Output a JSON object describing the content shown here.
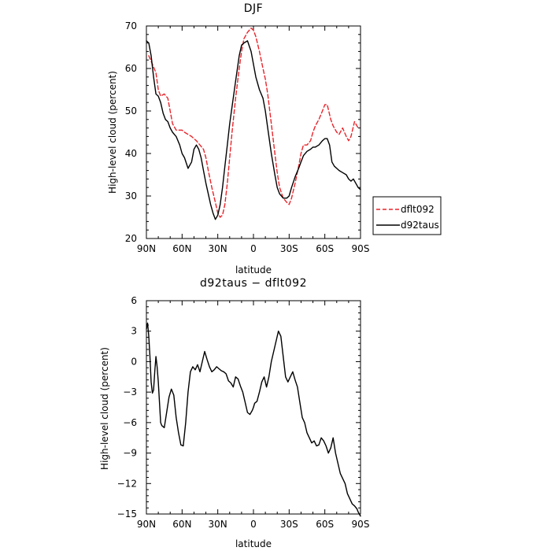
{
  "chart_data": [
    {
      "type": "line",
      "title": "DJF",
      "xlabel": "latitude",
      "ylabel": "High-level cloud (percent)",
      "xlim": [
        90,
        -90
      ],
      "ylim": [
        20,
        70
      ],
      "xticks": [
        90,
        60,
        30,
        0,
        -30,
        -60,
        -90
      ],
      "xtick_labels": [
        "90N",
        "60N",
        "30N",
        "0",
        "30S",
        "60S",
        "90S"
      ],
      "yticks": [
        20,
        30,
        40,
        50,
        60,
        70
      ],
      "ytick_labels": [
        "20",
        "30",
        "40",
        "50",
        "60",
        "70"
      ],
      "legend": {
        "placement": "right",
        "entries": [
          "dflt092",
          "d92taus"
        ]
      },
      "series": [
        {
          "name": "dflt092",
          "color": "#e8242a",
          "dash": "dashed",
          "x": [
            88,
            85,
            82,
            80,
            78,
            75,
            72,
            70,
            68,
            65,
            62,
            60,
            58,
            55,
            52,
            50,
            48,
            45,
            42,
            40,
            38,
            35,
            32,
            30,
            28,
            26,
            24,
            22,
            20,
            18,
            15,
            12,
            10,
            8,
            5,
            2,
            0,
            -2,
            -5,
            -8,
            -10,
            -12,
            -15,
            -18,
            -20,
            -22,
            -25,
            -28,
            -30,
            -32,
            -35,
            -38,
            -40,
            -42,
            -45,
            -48,
            -50,
            -52,
            -55,
            -58,
            -60,
            -62,
            -65,
            -67,
            -70,
            -72,
            -75,
            -78,
            -80,
            -82,
            -85,
            -88
          ],
          "values": [
            63,
            61,
            59,
            55,
            53.5,
            54,
            53,
            50,
            47,
            45.5,
            45.5,
            45.5,
            45,
            44.5,
            44,
            43.5,
            43,
            42,
            41,
            39,
            36,
            32,
            28.5,
            26,
            25,
            25.5,
            28,
            33,
            39,
            45,
            53,
            60,
            64,
            67,
            68.5,
            69.5,
            69,
            67.5,
            64,
            60,
            57.5,
            54,
            47,
            40,
            35.5,
            32,
            29.5,
            28.5,
            28,
            29.5,
            33,
            37,
            40,
            42,
            42,
            43,
            45,
            46.5,
            48,
            50,
            51.5,
            51.5,
            48,
            46.5,
            45,
            44.5,
            46,
            44,
            43,
            44,
            47.5,
            46
          ]
        },
        {
          "name": "d92taus",
          "color": "#000000",
          "dash": "solid",
          "x": [
            90,
            88,
            86,
            84,
            82,
            80,
            78,
            76,
            74,
            72,
            70,
            68,
            65,
            62,
            60,
            58,
            55,
            52,
            50,
            48,
            46,
            44,
            42,
            40,
            38,
            36,
            34,
            32,
            30,
            28,
            26,
            24,
            22,
            20,
            18,
            15,
            12,
            10,
            8,
            5,
            2,
            0,
            -2,
            -5,
            -8,
            -10,
            -12,
            -15,
            -18,
            -20,
            -22,
            -25,
            -28,
            -30,
            -32,
            -35,
            -38,
            -40,
            -42,
            -45,
            -48,
            -50,
            -52,
            -55,
            -58,
            -60,
            -62,
            -64,
            -66,
            -68,
            -70,
            -72,
            -75,
            -78,
            -80,
            -82,
            -84,
            -86,
            -88,
            -90
          ],
          "values": [
            66.5,
            66,
            63,
            58,
            54,
            53.5,
            52,
            49.5,
            48,
            47.5,
            46,
            45,
            44,
            42,
            40,
            39,
            36.5,
            38,
            41,
            42,
            41,
            39,
            36,
            33,
            30.5,
            28,
            26,
            24.5,
            25.5,
            28,
            32,
            37,
            42,
            47,
            51,
            57,
            63,
            65.5,
            66,
            66.5,
            64,
            61,
            58,
            55,
            53,
            50,
            46,
            40,
            35,
            32,
            30.5,
            29.5,
            29.5,
            30,
            32,
            34.5,
            36.5,
            38,
            39.5,
            40.5,
            41,
            41.5,
            41.5,
            42,
            43,
            43.5,
            43.5,
            42,
            38,
            37,
            36.5,
            36,
            35.5,
            35,
            34,
            33.5,
            34,
            33,
            32,
            31.5
          ]
        }
      ]
    },
    {
      "type": "line",
      "title": "d92taus − dflt092",
      "xlabel": "latitude",
      "ylabel": "High-level cloud (percent)",
      "xlim": [
        90,
        -90
      ],
      "ylim": [
        -15,
        6
      ],
      "xticks": [
        90,
        60,
        30,
        0,
        -30,
        -60,
        -90
      ],
      "xtick_labels": [
        "90N",
        "60N",
        "30N",
        "0",
        "30S",
        "60S",
        "90S"
      ],
      "yticks": [
        -15,
        -12,
        -9,
        -6,
        -3,
        0,
        3,
        6
      ],
      "ytick_labels": [
        "−15",
        "−12",
        "−9",
        "−6",
        "−3",
        "0",
        "3",
        "6"
      ],
      "series": [
        {
          "color": "#000000",
          "dash": "solid",
          "x": [
            90,
            89,
            88,
            87,
            86,
            85,
            84,
            83,
            82,
            81,
            80,
            79,
            78,
            77,
            75,
            73,
            71,
            69,
            67,
            65,
            63,
            61,
            59,
            57,
            55,
            53,
            51,
            49,
            47,
            45,
            43,
            41,
            39,
            37,
            35,
            33,
            31,
            29,
            27,
            25,
            23,
            21,
            19,
            17,
            15,
            13,
            11,
            9,
            7,
            5,
            3,
            1,
            0,
            -1,
            -3,
            -5,
            -7,
            -9,
            -11,
            -13,
            -15,
            -17,
            -19,
            -21,
            -23,
            -25,
            -27,
            -29,
            -31,
            -33,
            -35,
            -37,
            -39,
            -41,
            -43,
            -45,
            -47,
            -49,
            -51,
            -53,
            -55,
            -57,
            -59,
            -61,
            -63,
            -65,
            -67,
            -69,
            -71,
            -73,
            -75,
            -77,
            -79,
            -81,
            -83,
            -85,
            -87,
            -88,
            -89,
            -90
          ],
          "values": [
            3.2,
            3.8,
            2.5,
            0.5,
            -2,
            -3.1,
            -2.8,
            -1,
            0.5,
            -0.5,
            -2,
            -4,
            -6,
            -6.3,
            -6.5,
            -5,
            -3.5,
            -2.7,
            -3.3,
            -5.5,
            -7,
            -8.2,
            -8.3,
            -6,
            -3,
            -1,
            -0.5,
            -0.8,
            -0.3,
            -1,
            0,
            1,
            0.2,
            -0.5,
            -1,
            -0.8,
            -0.5,
            -0.7,
            -0.9,
            -1,
            -1.2,
            -1.9,
            -2.1,
            -2.5,
            -1.5,
            -1.7,
            -2.4,
            -3,
            -4,
            -5,
            -5.2,
            -4.8,
            -4.5,
            -4.1,
            -3.9,
            -3,
            -2,
            -1.5,
            -2.5,
            -1.5,
            0,
            1,
            2,
            3,
            2.5,
            0.5,
            -1.5,
            -2,
            -1.5,
            -1,
            -1.8,
            -2.5,
            -4,
            -5.5,
            -6,
            -7,
            -7.5,
            -8,
            -7.8,
            -8.3,
            -8.2,
            -7.5,
            -7.8,
            -8.3,
            -9,
            -8.5,
            -7.5,
            -9,
            -10,
            -11,
            -11.5,
            -12,
            -13,
            -13.5,
            -14,
            -14.2,
            -14.5,
            -14.8,
            -15,
            -15.2
          ]
        }
      ]
    }
  ]
}
